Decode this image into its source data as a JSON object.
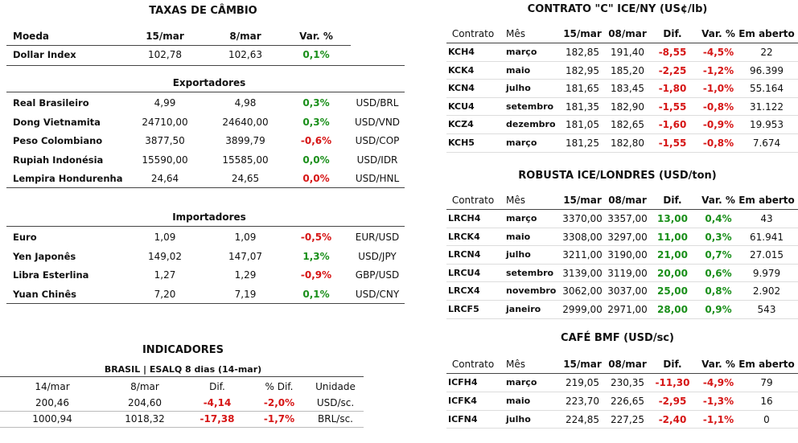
{
  "taxas": {
    "title": "TAXAS DE CÂMBIO",
    "headers": [
      "Moeda",
      "15/mar",
      "8/mar",
      "Var. %"
    ],
    "dollar_index": {
      "name": "Dollar Index",
      "v1": "102,78",
      "v2": "102,63",
      "var": "0,1%"
    },
    "exportadores_title": "Exportadores",
    "exportadores": [
      {
        "name": "Real Brasileiro",
        "v1": "4,99",
        "v2": "4,98",
        "var": "0,3%",
        "pair": "USD/BRL",
        "sign": "pos"
      },
      {
        "name": "Dong Vietnamita",
        "v1": "24710,00",
        "v2": "24640,00",
        "var": "0,3%",
        "pair": "USD/VND",
        "sign": "pos"
      },
      {
        "name": "Peso Colombiano",
        "v1": "3877,50",
        "v2": "3899,79",
        "var": "-0,6%",
        "pair": "USD/COP",
        "sign": "neg"
      },
      {
        "name": "Rupiah Indonésia",
        "v1": "15590,00",
        "v2": "15585,00",
        "var": "0,0%",
        "pair": "USD/IDR",
        "sign": "pos"
      },
      {
        "name": "Lempira Hondurenha",
        "v1": "24,64",
        "v2": "24,65",
        "var": "0,0%",
        "pair": "USD/HNL",
        "sign": "neg"
      }
    ],
    "importadores_title": "Importadores",
    "importadores": [
      {
        "name": "Euro",
        "v1": "1,09",
        "v2": "1,09",
        "var": "-0,5%",
        "pair": "EUR/USD",
        "sign": "neg"
      },
      {
        "name": "Yen Japonês",
        "v1": "149,02",
        "v2": "147,07",
        "var": "1,3%",
        "pair": "USD/JPY",
        "sign": "pos"
      },
      {
        "name": "Libra Esterlina",
        "v1": "1,27",
        "v2": "1,29",
        "var": "-0,9%",
        "pair": "GBP/USD",
        "sign": "neg"
      },
      {
        "name": "Yuan Chinês",
        "v1": "7,20",
        "v2": "7,19",
        "var": "0,1%",
        "pair": "USD/CNY",
        "sign": "pos"
      }
    ]
  },
  "indicadores": {
    "title": "INDICADORES",
    "subtitle": "BRASIL | ESALQ 8 dias (14-mar)",
    "headers": [
      "14/mar",
      "8/mar",
      "Dif.",
      "% Dif.",
      "Unidade"
    ],
    "rows": [
      {
        "v1": "200,46",
        "v2": "204,60",
        "dif": "-4,14",
        "pct": "-2,0%",
        "unit": "USD/sc."
      },
      {
        "v1": "1000,94",
        "v2": "1018,32",
        "dif": "-17,38",
        "pct": "-1,7%",
        "unit": "BRL/sc."
      }
    ]
  },
  "arabica": {
    "title": "CONTRATO \"C\" ICE/NY (US¢/lb)",
    "headers": [
      "Contrato",
      "Mês",
      "15/mar",
      "08/mar",
      "Dif.",
      "Var. %",
      "Em aberto"
    ],
    "rows": [
      {
        "code": "KCH4",
        "month": "março",
        "v1": "182,85",
        "v2": "191,40",
        "dif": "-8,55",
        "var": "-4,5%",
        "open": "22",
        "sign": "neg"
      },
      {
        "code": "KCK4",
        "month": "maio",
        "v1": "182,95",
        "v2": "185,20",
        "dif": "-2,25",
        "var": "-1,2%",
        "open": "96.399",
        "sign": "neg"
      },
      {
        "code": "KCN4",
        "month": "julho",
        "v1": "181,65",
        "v2": "183,45",
        "dif": "-1,80",
        "var": "-1,0%",
        "open": "55.164",
        "sign": "neg"
      },
      {
        "code": "KCU4",
        "month": "setembro",
        "v1": "181,35",
        "v2": "182,90",
        "dif": "-1,55",
        "var": "-0,8%",
        "open": "31.122",
        "sign": "neg"
      },
      {
        "code": "KCZ4",
        "month": "dezembro",
        "v1": "181,05",
        "v2": "182,65",
        "dif": "-1,60",
        "var": "-0,9%",
        "open": "19.953",
        "sign": "neg"
      },
      {
        "code": "KCH5",
        "month": "março",
        "v1": "181,25",
        "v2": "182,80",
        "dif": "-1,55",
        "var": "-0,8%",
        "open": "7.674",
        "sign": "neg"
      }
    ]
  },
  "robusta": {
    "title": "ROBUSTA ICE/LONDRES (USD/ton)",
    "headers": [
      "Contrato",
      "Mês",
      "15/mar",
      "08/mar",
      "Dif.",
      "Var. %",
      "Em aberto"
    ],
    "rows": [
      {
        "code": "LRCH4",
        "month": "março",
        "v1": "3370,00",
        "v2": "3357,00",
        "dif": "13,00",
        "var": "0,4%",
        "open": "43",
        "sign": "pos"
      },
      {
        "code": "LRCK4",
        "month": "maio",
        "v1": "3308,00",
        "v2": "3297,00",
        "dif": "11,00",
        "var": "0,3%",
        "open": "61.941",
        "sign": "pos"
      },
      {
        "code": "LRCN4",
        "month": "julho",
        "v1": "3211,00",
        "v2": "3190,00",
        "dif": "21,00",
        "var": "0,7%",
        "open": "27.015",
        "sign": "pos"
      },
      {
        "code": "LRCU4",
        "month": "setembro",
        "v1": "3139,00",
        "v2": "3119,00",
        "dif": "20,00",
        "var": "0,6%",
        "open": "9.979",
        "sign": "pos"
      },
      {
        "code": "LRCX4",
        "month": "novembro",
        "v1": "3062,00",
        "v2": "3037,00",
        "dif": "25,00",
        "var": "0,8%",
        "open": "2.902",
        "sign": "pos"
      },
      {
        "code": "LRCF5",
        "month": "janeiro",
        "v1": "2999,00",
        "v2": "2971,00",
        "dif": "28,00",
        "var": "0,9%",
        "open": "543",
        "sign": "pos"
      }
    ]
  },
  "bmf": {
    "title": "CAFÉ BMF (USD/sc)",
    "headers": [
      "Contrato",
      "Mês",
      "15/mar",
      "08/mar",
      "Dif.",
      "Var. %",
      "Em aberto"
    ],
    "rows": [
      {
        "code": "ICFH4",
        "month": "março",
        "v1": "219,05",
        "v2": "230,35",
        "dif": "-11,30",
        "var": "-4,9%",
        "open": "79",
        "sign": "neg"
      },
      {
        "code": "ICFK4",
        "month": "maio",
        "v1": "223,70",
        "v2": "226,65",
        "dif": "-2,95",
        "var": "-1,3%",
        "open": "16",
        "sign": "neg"
      },
      {
        "code": "ICFN4",
        "month": "julho",
        "v1": "224,85",
        "v2": "227,25",
        "dif": "-2,40",
        "var": "-1,1%",
        "open": "0",
        "sign": "neg"
      }
    ]
  },
  "colors": {
    "positive": "#1a8f1a",
    "negative": "#d61515"
  }
}
